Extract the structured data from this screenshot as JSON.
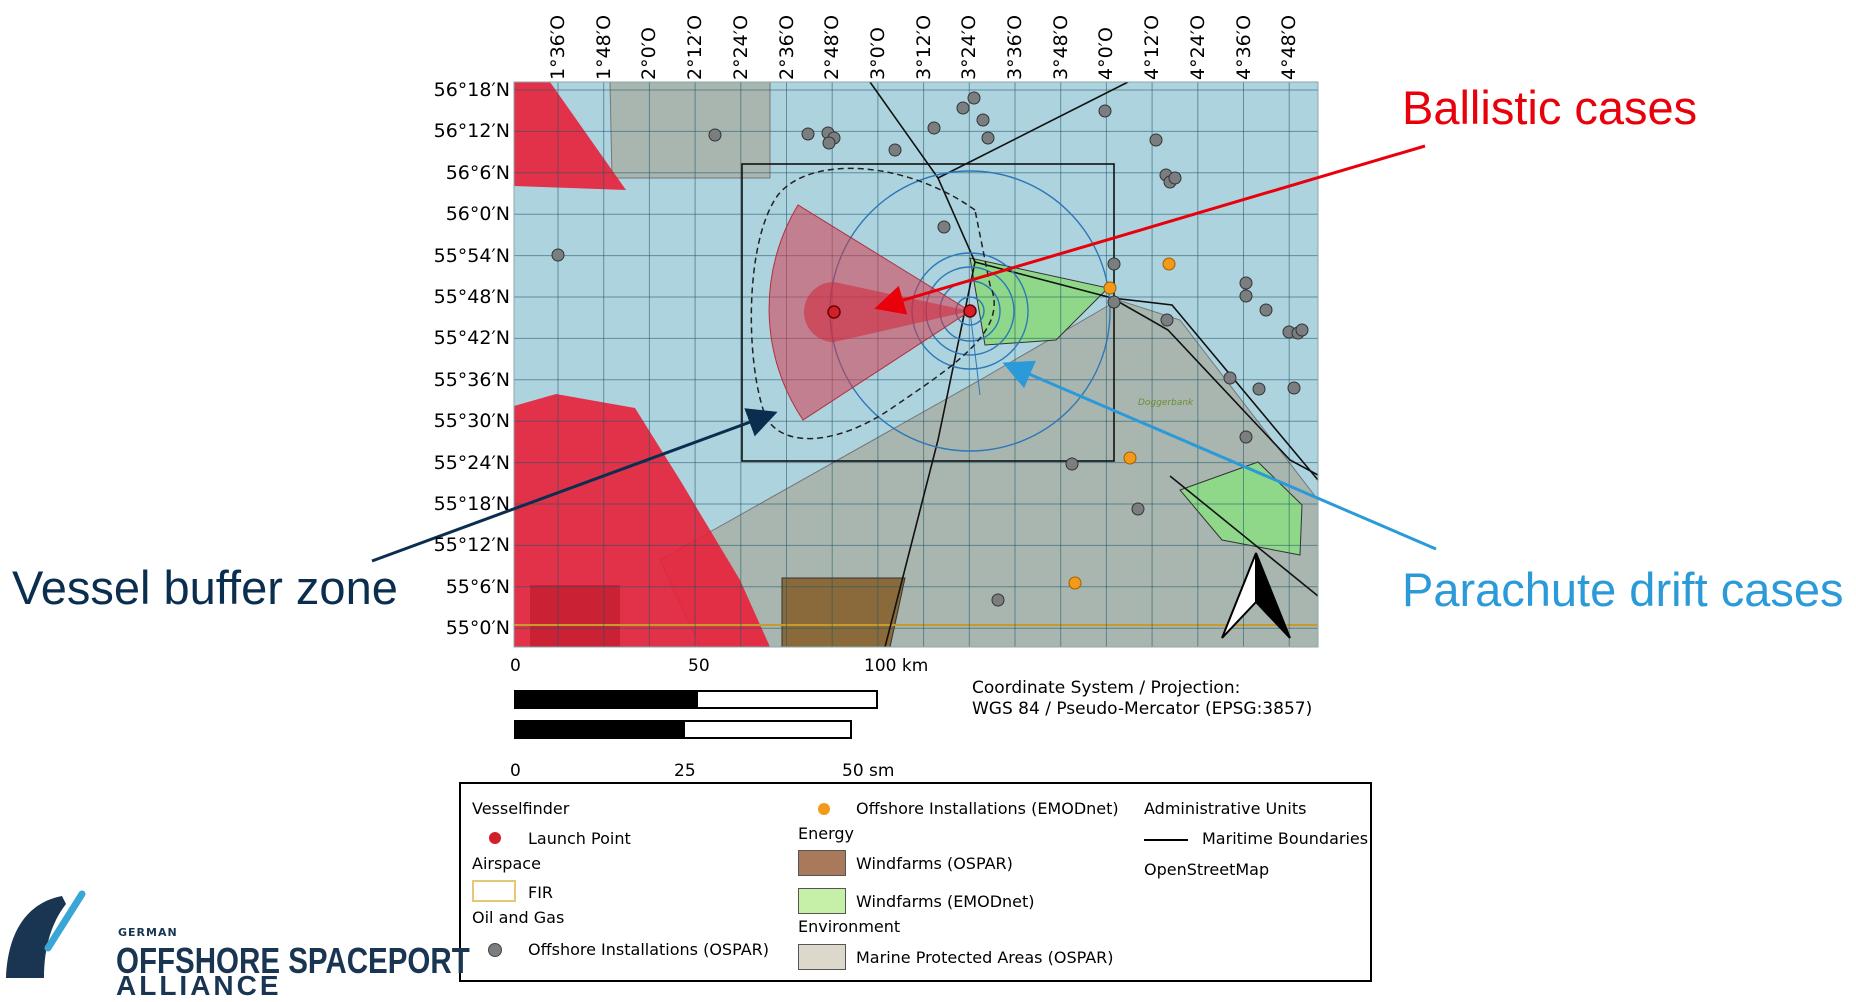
{
  "lon_ticks": [
    "1°36′O",
    "1°48′O",
    "2°0′O",
    "2°12′O",
    "2°24′O",
    "2°36′O",
    "2°48′O",
    "3°0′O",
    "3°12′O",
    "3°24′O",
    "3°36′O",
    "3°48′O",
    "4°0′O",
    "4°12′O",
    "4°24′O",
    "4°36′O",
    "4°48′O"
  ],
  "lat_ticks": [
    "56°18′N",
    "56°12′N",
    "56°6′N",
    "56°0′N",
    "55°54′N",
    "55°48′N",
    "55°42′N",
    "55°36′N",
    "55°30′N",
    "55°24′N",
    "55°18′N",
    "55°12′N",
    "55°6′N",
    "55°0′N"
  ],
  "callouts": {
    "ballistic": "Ballistic cases",
    "vessel": "Vessel buffer zone",
    "parachute": "Parachute drift cases"
  },
  "map_label": "Doggerbank",
  "scale": {
    "km": {
      "zero": "0",
      "mid": "50",
      "end": "100 km"
    },
    "sm": {
      "zero": "0",
      "mid": "25",
      "end": "50 sm"
    }
  },
  "projection": {
    "line1": "Coordinate System / Projection:",
    "line2": "WGS 84 / Pseudo-Mercator (EPSG:3857)"
  },
  "legend": {
    "vesselfinder": "Vesselfinder",
    "launch_point": "Launch Point",
    "airspace": "Airspace",
    "fir": "FIR",
    "oil_gas": "Oil and Gas",
    "offshore_ospar": "Offshore Installations (OSPAR)",
    "offshore_emodnet": "Offshore Installations (EMODnet)",
    "energy": "Energy",
    "windfarms_ospar": "Windfarms (OSPAR)",
    "windfarms_emodnet": "Windfarms (EMODnet)",
    "environment": "Environment",
    "mpa_ospar": "Marine Protected Areas (OSPAR)",
    "admin_units": "Administrative Units",
    "maritime_boundaries": "Maritime Boundaries",
    "osm": "OpenStreetMap"
  },
  "logo": {
    "small": "GERMAN",
    "big": "OFFSHORE SPACEPORT",
    "third": "ALLIANCE"
  },
  "colors": {
    "sea": "#add3df",
    "grid": "#1d5566",
    "restricted_red": "#e8203a",
    "mpa_gray": "#a9b6b0",
    "wind_green": "#8fd88a",
    "wind_brown": "#8a6a3a",
    "fir_line": "#c79a2b",
    "ballistic_red": "#d13a4c",
    "parachute_blue": "#2d78b8",
    "ospar_point": "#7b7e80",
    "emodnet_point": "#f29a1c",
    "callout_red": "#e8000b",
    "callout_navy": "#0b2e4f",
    "callout_blue": "#2a9ad8"
  }
}
